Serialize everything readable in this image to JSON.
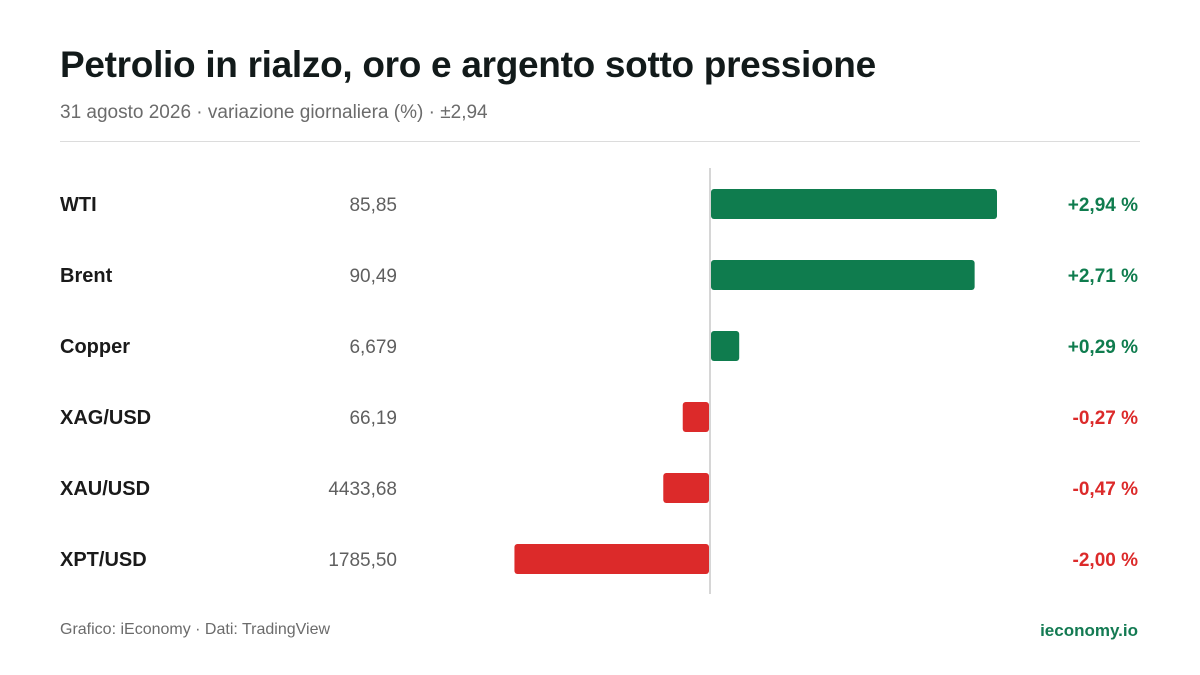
{
  "header": {
    "title": "Petrolio in rialzo, oro e argento sotto pressione",
    "subtitle": "31 agosto 2026 · variazione giornaliera (%) · ±2,94"
  },
  "footer": {
    "source": "Grafico: iEconomy · Dati: TradingView",
    "brand": "ieconomy.io"
  },
  "colors": {
    "positive": "#0f7c4e",
    "negative": "#dc2a2a",
    "label": "#1a1a1a",
    "price": "#5f5f5f",
    "axis": "#d6d6d6"
  },
  "chart_data": {
    "type": "bar",
    "orientation": "horizontal",
    "xlim": [
      -2.94,
      2.94
    ],
    "categories": [
      "WTI",
      "Brent",
      "Copper",
      "XAG/USD",
      "XAU/USD",
      "XPT/USD"
    ],
    "prices": [
      "85,85",
      "90,49",
      "6,679",
      "66,19",
      "4433,68",
      "1785,50"
    ],
    "values": [
      2.94,
      2.71,
      0.29,
      -0.27,
      -0.47,
      -2.0
    ],
    "value_labels": [
      "+2,94 %",
      "+2,71 %",
      "+0,29 %",
      "-0,27 %",
      "-0,47 %",
      "-2,00 %"
    ]
  }
}
